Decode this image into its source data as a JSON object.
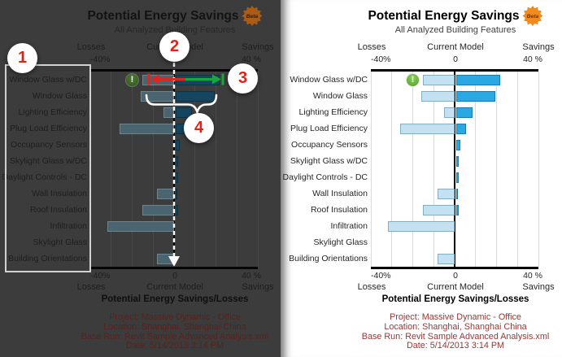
{
  "chart": {
    "title": "Potential Energy Savings",
    "badge_label": "Beta",
    "subtitle": "All Analyzed Building Features",
    "axis": {
      "losses_label": "Losses",
      "center_label": "Current Model",
      "savings_label": "Savings",
      "min_tick": "-40%",
      "center_tick": "0",
      "max_tick": "40 %"
    },
    "footer": {
      "heading": "Potential Energy Savings/Losses",
      "lines": [
        "Project: Massive Dynamic - Office",
        "Location: Shanghai, Shanghai China",
        "Base Run: Revit Sample Advanced Analysis.xml",
        "Date: 5/14/2013 3:14 PM"
      ]
    }
  },
  "chart_data": {
    "type": "bar",
    "variant": "horizontal-tornado",
    "title": "Potential Energy Savings",
    "subtitle": "All Analyzed Building Features",
    "xlabel": "Potential Energy Savings/Losses",
    "xlim": [
      -40,
      40
    ],
    "gridline_step_pct": 10,
    "grid": true,
    "categories": [
      "Window Glass w/DC",
      "Window Glass",
      "Lighting Efficiency",
      "Plug Load Efficiency",
      "Occupancy Sensors",
      "Skylight Glass w/DC",
      "Daylight Controls - DC",
      "Wall Insulation",
      "Roof Insulation",
      "Infiltration",
      "Skylight Glass",
      "Building Orientations"
    ],
    "series": [
      {
        "name": "Losses",
        "color": "#c3e1f0",
        "values": [
          -15,
          -16,
          -5,
          -26,
          0,
          0,
          0,
          -8,
          -15,
          -32,
          0,
          -8
        ]
      },
      {
        "name": "Savings",
        "color": "#2ba7e1",
        "values": [
          21,
          19,
          8,
          5,
          2,
          1.5,
          1.5,
          1,
          1.5,
          0,
          0,
          0
        ]
      }
    ],
    "marker": {
      "category": "Window Glass w/DC",
      "value_pct": -20,
      "icon": "green-warning-info-icon",
      "glyph": "!"
    }
  },
  "annotations": {
    "callouts": [
      "1",
      "2",
      "3",
      "4"
    ],
    "callout_number_color": "#e02318",
    "arrow_red": "#e0251c",
    "arrow_green": "#17a83b",
    "dashed_arrow_color": "#ffffff"
  },
  "colors": {
    "savings_bar": "#2ba7e1",
    "losses_bar": "#c3e1f0",
    "footer_text": "#953735",
    "badge_orange": "#f28b1d",
    "marker_green": "#4e9e2e",
    "left_panel_bg": "#3c3c3c"
  }
}
